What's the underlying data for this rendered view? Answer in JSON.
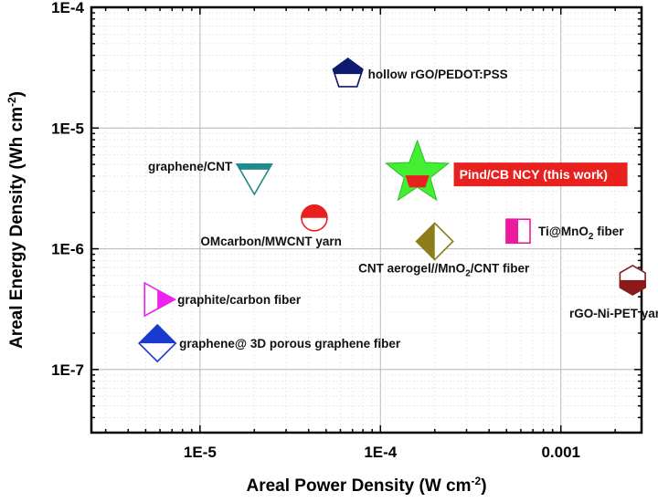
{
  "chart_data": {
    "type": "scatter",
    "title": "",
    "xlabel": "Areal Power Density (W cm",
    "xlabel_sup": "-2",
    "xlabel_end": ")",
    "ylabel": "Areal Energy Density (Wh cm",
    "ylabel_sup": "-2",
    "ylabel_end": ")",
    "xscale": "log",
    "yscale": "log",
    "xlim": [
      2.5e-06,
      0.0028
    ],
    "ylim": [
      3e-08,
      0.0001
    ],
    "grid": true,
    "x_ticks": [
      {
        "value": 1e-05,
        "label": "1E-5"
      },
      {
        "value": 0.0001,
        "label": "1E-4"
      },
      {
        "value": 0.001,
        "label": "0.001"
      }
    ],
    "y_ticks": [
      {
        "value": 1e-07,
        "mant": "1E-7"
      },
      {
        "value": 1e-06,
        "mant": "1E-6"
      },
      {
        "value": 1e-05,
        "mant": "1E-5"
      },
      {
        "value": 0.0001,
        "mant": "1E-4"
      }
    ],
    "series": [
      {
        "name": "hollow rGO/PEDOT:PSS",
        "x": 6.6e-05,
        "y": 2.8e-05,
        "marker": "pentagon",
        "fill_half": "top",
        "color": "#0d1a6e",
        "label": "hollow rGO/PEDOT:PSS"
      },
      {
        "name": "graphene/CNT",
        "x": 2e-05,
        "y": 4e-06,
        "marker": "triangle-down",
        "fill_half": "top",
        "color": "#1e8a8a",
        "label": "graphene/CNT"
      },
      {
        "name": "OMcarbon/MWCNT yarn",
        "x": 4.3e-05,
        "y": 1.8e-06,
        "marker": "circle",
        "fill_half": "top",
        "color": "#e8201e",
        "label": "OMcarbon/MWCNT yarn"
      },
      {
        "name": "Pind/CB NCY (this work)",
        "x": 0.00016,
        "y": 4.2e-06,
        "marker": "star",
        "color": "#44ee33",
        "accent": "#e8201e",
        "label": "Pind/CB NCY (this work)",
        "highlight": true
      },
      {
        "name": "CNT aerogel//MnO2/CNT fiber",
        "x": 0.0002,
        "y": 1.15e-06,
        "marker": "diamond",
        "fill_half": "left",
        "color": "#8b7d1a",
        "label": "CNT aerogel//MnO",
        "label_sub": "2",
        "label_end": "/CNT fiber"
      },
      {
        "name": "Ti@MnO2 fiber",
        "x": 0.00058,
        "y": 1.4e-06,
        "marker": "square",
        "fill_half": "left",
        "color": "#ee1a9e",
        "label": "Ti@MnO",
        "label_sub": "2",
        "label_end": " fiber"
      },
      {
        "name": "rGO-Ni-PET yarn",
        "x": 0.0025,
        "y": 5.5e-07,
        "marker": "hexagon",
        "fill_half": "bottom",
        "color": "#8b1a1a",
        "label": "rGO-Ni-PET yarn"
      },
      {
        "name": "graphite/carbon fiber",
        "x": 5.8e-06,
        "y": 3.8e-07,
        "marker": "triangle-right",
        "fill_half": "right",
        "color": "#ee22ee",
        "label": "graphite/carbon fiber"
      },
      {
        "name": "graphene@ 3D porous graphene fiber",
        "x": 5.8e-06,
        "y": 1.65e-07,
        "marker": "diamond",
        "fill_half": "top",
        "color": "#1a3acd",
        "label": "graphene@ 3D porous graphene fiber"
      }
    ]
  }
}
